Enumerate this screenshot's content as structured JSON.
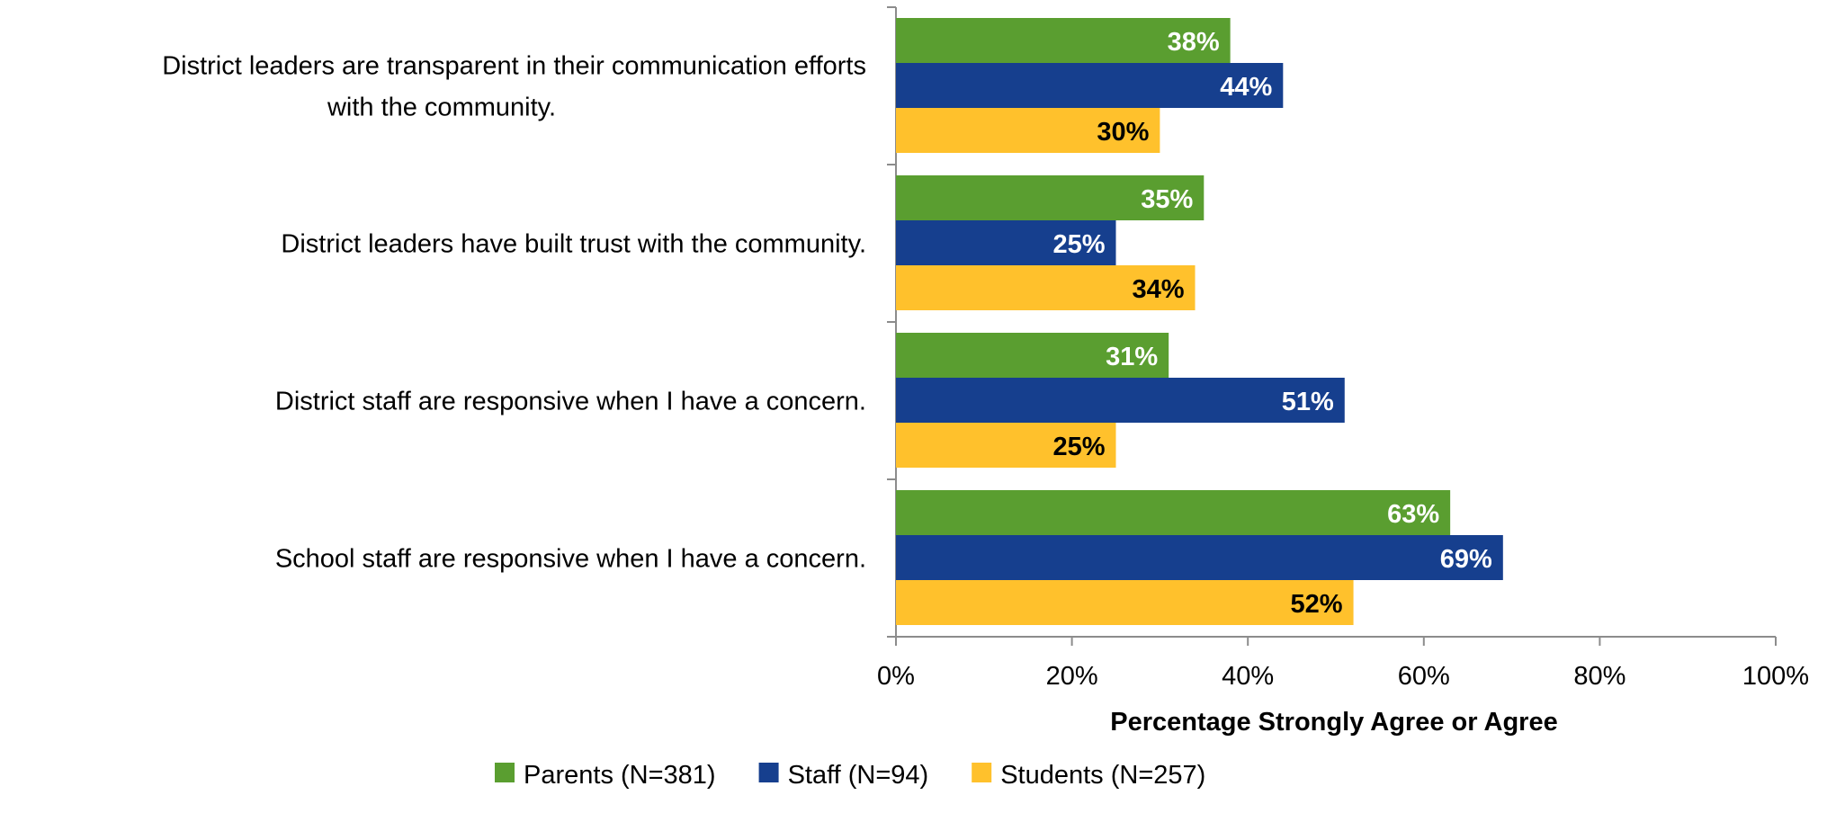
{
  "chart_data": {
    "type": "bar",
    "orientation": "horizontal",
    "categories": [
      [
        "District leaders are transparent in their communication efforts",
        "with the community."
      ],
      [
        "District leaders have built trust with the community."
      ],
      [
        "District staff are responsive when I have a concern."
      ],
      [
        "School staff are responsive when I have a concern."
      ]
    ],
    "series": [
      {
        "name": "Parents (N=381)",
        "color": "#5A9E30",
        "label_color": "#ffffff",
        "values": [
          38,
          35,
          31,
          63
        ],
        "labels": [
          "38%",
          "35%",
          "31%",
          "63%"
        ]
      },
      {
        "name": "Staff (N=94)",
        "color": "#163F8E",
        "label_color": "#ffffff",
        "values": [
          44,
          25,
          51,
          69
        ],
        "labels": [
          "44%",
          "25%",
          "51%",
          "69%"
        ]
      },
      {
        "name": "Students (N=257)",
        "color": "#FFC12C",
        "label_color": "#000000",
        "values": [
          30,
          34,
          25,
          52
        ],
        "labels": [
          "30%",
          "34%",
          "25%",
          "52%"
        ]
      }
    ],
    "xlim": [
      0,
      100
    ],
    "xticks": [
      0,
      20,
      40,
      60,
      80,
      100
    ],
    "xtick_labels": [
      "0%",
      "20%",
      "40%",
      "60%",
      "80%",
      "100%"
    ],
    "xlabel": "Percentage Strongly Agree or Agree",
    "legend": {
      "position": "bottom"
    },
    "grid": false
  }
}
